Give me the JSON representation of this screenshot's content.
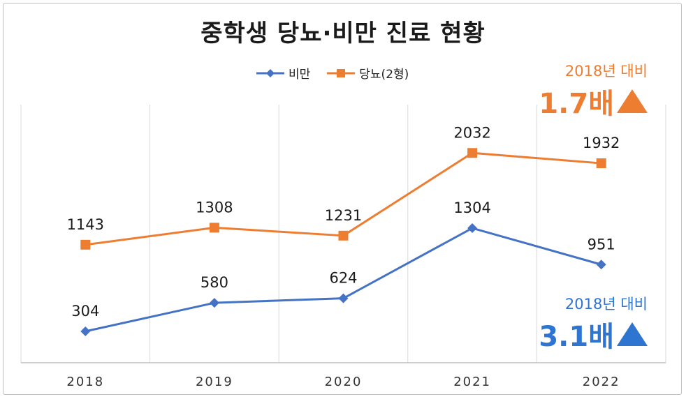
{
  "chart_data": {
    "type": "line",
    "title": "중학생 당뇨·비만 진료 현황",
    "categories": [
      "2018",
      "2019",
      "2020",
      "2021",
      "2022"
    ],
    "series": [
      {
        "name": "비만",
        "values": [
          304,
          580,
          624,
          1304,
          951
        ],
        "color": "#4472c4",
        "marker": "diamond"
      },
      {
        "name": "당뇨(2형)",
        "values": [
          1143,
          1308,
          1231,
          2032,
          1932
        ],
        "color": "#ed7d31",
        "marker": "square"
      }
    ],
    "ylim": [
      0,
      2500
    ],
    "grid": "vertical",
    "legend": "top-center",
    "annotations": [
      {
        "id": "diabetes",
        "line1": "2018년 대비",
        "line2": "1.7배",
        "color": "#ed7d31"
      },
      {
        "id": "obesity",
        "line1": "2018년 대비",
        "line2": "3.1배",
        "color": "#2e75d1"
      }
    ]
  }
}
